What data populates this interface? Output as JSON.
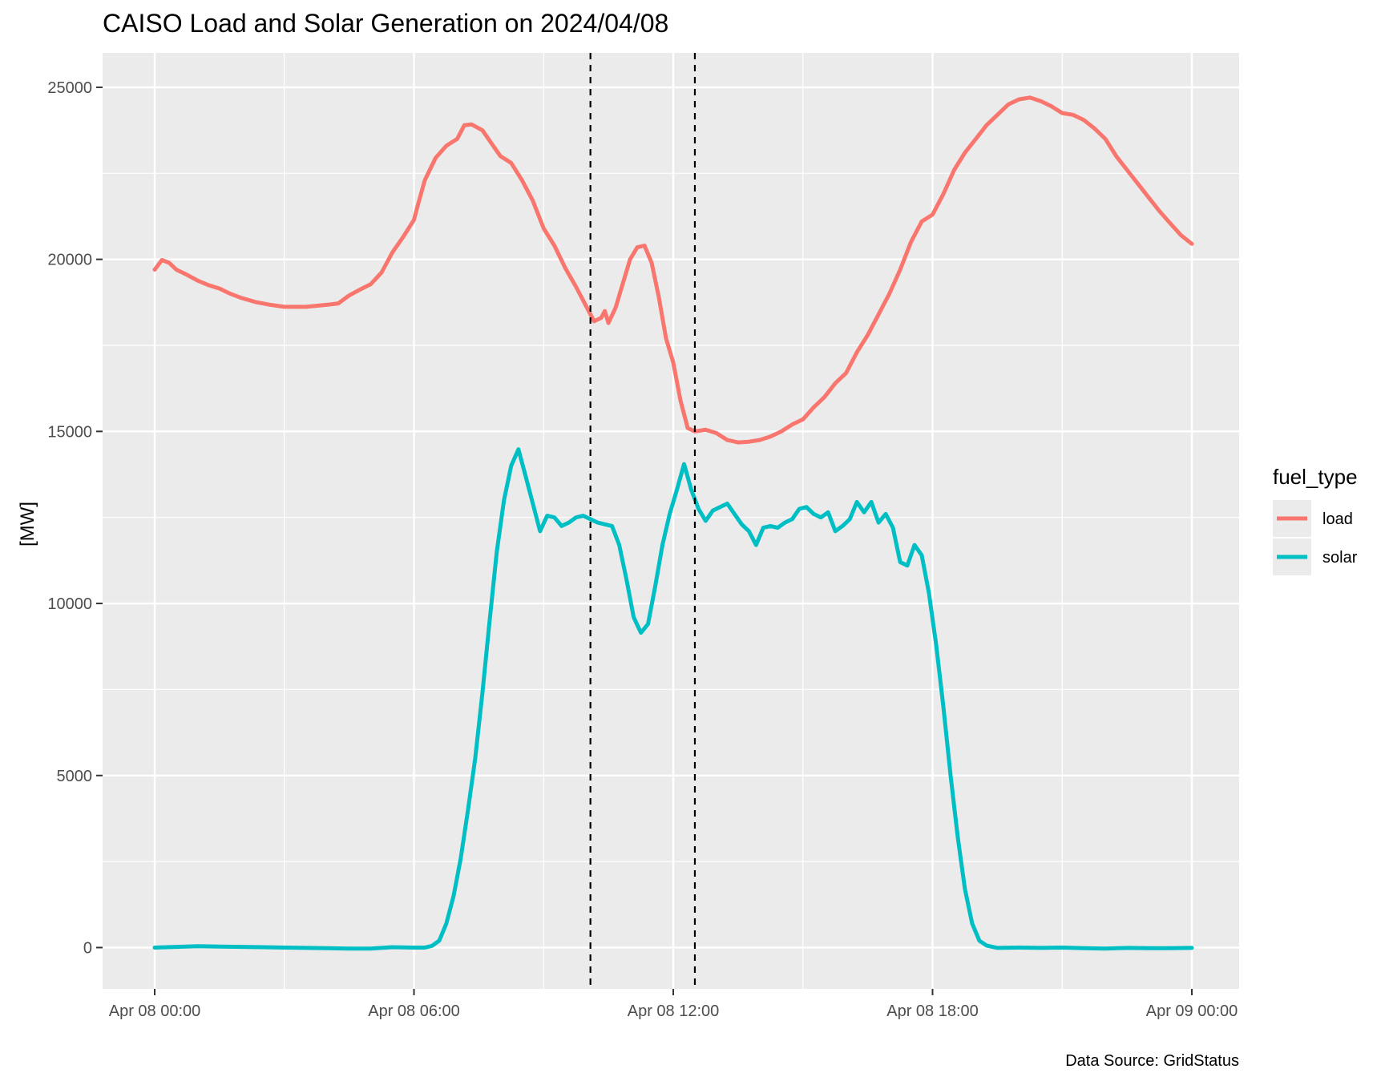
{
  "chart_data": {
    "type": "line",
    "title": "CAISO Load and Solar Generation on 2024/04/08",
    "xlabel": "",
    "ylabel": "[MW]",
    "caption": "Data Source: GridStatus",
    "x_range": [
      "2024-04-08 00:00",
      "2024-04-09 00:00"
    ],
    "ylim": [
      -1200,
      26000
    ],
    "y_ticks": [
      0,
      5000,
      10000,
      15000,
      20000,
      25000
    ],
    "y_tick_labels": [
      "0",
      "5000",
      "10000",
      "15000",
      "20000",
      "25000"
    ],
    "x_ticks": [
      "2024-04-08 00:00",
      "2024-04-08 06:00",
      "2024-04-08 12:00",
      "2024-04-08 18:00",
      "2024-04-09 00:00"
    ],
    "x_tick_labels": [
      "Apr 08 00:00",
      "Apr 08 06:00",
      "Apr 08 12:00",
      "Apr 08 18:00",
      "Apr 09 00:00"
    ],
    "grid": true,
    "legend": {
      "title": "fuel_type",
      "position": "right"
    },
    "vlines": [
      "2024-04-08 10:05",
      "2024-04-08 12:30"
    ],
    "series": [
      {
        "name": "load",
        "color": "#F8766D",
        "points": [
          [
            "2024-04-08 00:00",
            19700
          ],
          [
            "2024-04-08 00:10",
            19980
          ],
          [
            "2024-04-08 00:20",
            19900
          ],
          [
            "2024-04-08 00:30",
            19700
          ],
          [
            "2024-04-08 00:45",
            19550
          ],
          [
            "2024-04-08 01:00",
            19380
          ],
          [
            "2024-04-08 01:15",
            19250
          ],
          [
            "2024-04-08 01:30",
            19150
          ],
          [
            "2024-04-08 01:45",
            19000
          ],
          [
            "2024-04-08 02:00",
            18880
          ],
          [
            "2024-04-08 02:20",
            18760
          ],
          [
            "2024-04-08 02:40",
            18680
          ],
          [
            "2024-04-08 03:00",
            18620
          ],
          [
            "2024-04-08 03:30",
            18620
          ],
          [
            "2024-04-08 04:00",
            18680
          ],
          [
            "2024-04-08 04:15",
            18720
          ],
          [
            "2024-04-08 04:30",
            18950
          ],
          [
            "2024-04-08 04:45",
            19120
          ],
          [
            "2024-04-08 05:00",
            19280
          ],
          [
            "2024-04-08 05:15",
            19620
          ],
          [
            "2024-04-08 05:30",
            20200
          ],
          [
            "2024-04-08 05:45",
            20650
          ],
          [
            "2024-04-08 06:00",
            21150
          ],
          [
            "2024-04-08 06:05",
            21550
          ],
          [
            "2024-04-08 06:15",
            22300
          ],
          [
            "2024-04-08 06:30",
            22950
          ],
          [
            "2024-04-08 06:45",
            23300
          ],
          [
            "2024-04-08 07:00",
            23500
          ],
          [
            "2024-04-08 07:10",
            23900
          ],
          [
            "2024-04-08 07:20",
            23920
          ],
          [
            "2024-04-08 07:35",
            23750
          ],
          [
            "2024-04-08 07:50",
            23300
          ],
          [
            "2024-04-08 08:00",
            23000
          ],
          [
            "2024-04-08 08:15",
            22800
          ],
          [
            "2024-04-08 08:30",
            22300
          ],
          [
            "2024-04-08 08:45",
            21700
          ],
          [
            "2024-04-08 09:00",
            20900
          ],
          [
            "2024-04-08 09:15",
            20400
          ],
          [
            "2024-04-08 09:30",
            19750
          ],
          [
            "2024-04-08 09:45",
            19200
          ],
          [
            "2024-04-08 10:00",
            18600
          ],
          [
            "2024-04-08 10:10",
            18200
          ],
          [
            "2024-04-08 10:20",
            18300
          ],
          [
            "2024-04-08 10:25",
            18500
          ],
          [
            "2024-04-08 10:30",
            18150
          ],
          [
            "2024-04-08 10:40",
            18600
          ],
          [
            "2024-04-08 10:50",
            19300
          ],
          [
            "2024-04-08 11:00",
            20000
          ],
          [
            "2024-04-08 11:10",
            20350
          ],
          [
            "2024-04-08 11:20",
            20400
          ],
          [
            "2024-04-08 11:30",
            19900
          ],
          [
            "2024-04-08 11:40",
            18900
          ],
          [
            "2024-04-08 11:50",
            17700
          ],
          [
            "2024-04-08 12:00",
            17000
          ],
          [
            "2024-04-08 12:10",
            15900
          ],
          [
            "2024-04-08 12:20",
            15100
          ],
          [
            "2024-04-08 12:30",
            15000
          ],
          [
            "2024-04-08 12:45",
            15050
          ],
          [
            "2024-04-08 13:00",
            14950
          ],
          [
            "2024-04-08 13:15",
            14750
          ],
          [
            "2024-04-08 13:30",
            14680
          ],
          [
            "2024-04-08 13:45",
            14700
          ],
          [
            "2024-04-08 14:00",
            14750
          ],
          [
            "2024-04-08 14:15",
            14850
          ],
          [
            "2024-04-08 14:30",
            15000
          ],
          [
            "2024-04-08 14:45",
            15200
          ],
          [
            "2024-04-08 15:00",
            15350
          ],
          [
            "2024-04-08 15:15",
            15700
          ],
          [
            "2024-04-08 15:30",
            16000
          ],
          [
            "2024-04-08 15:45",
            16400
          ],
          [
            "2024-04-08 16:00",
            16700
          ],
          [
            "2024-04-08 16:15",
            17300
          ],
          [
            "2024-04-08 16:30",
            17800
          ],
          [
            "2024-04-08 16:45",
            18400
          ],
          [
            "2024-04-08 17:00",
            19000
          ],
          [
            "2024-04-08 17:15",
            19700
          ],
          [
            "2024-04-08 17:30",
            20500
          ],
          [
            "2024-04-08 17:45",
            21100
          ],
          [
            "2024-04-08 18:00",
            21300
          ],
          [
            "2024-04-08 18:15",
            21900
          ],
          [
            "2024-04-08 18:30",
            22600
          ],
          [
            "2024-04-08 18:45",
            23100
          ],
          [
            "2024-04-08 19:00",
            23500
          ],
          [
            "2024-04-08 19:15",
            23900
          ],
          [
            "2024-04-08 19:30",
            24200
          ],
          [
            "2024-04-08 19:45",
            24500
          ],
          [
            "2024-04-08 20:00",
            24650
          ],
          [
            "2024-04-08 20:15",
            24700
          ],
          [
            "2024-04-08 20:30",
            24600
          ],
          [
            "2024-04-08 20:45",
            24450
          ],
          [
            "2024-04-08 21:00",
            24250
          ],
          [
            "2024-04-08 21:15",
            24200
          ],
          [
            "2024-04-08 21:30",
            24050
          ],
          [
            "2024-04-08 21:45",
            23800
          ],
          [
            "2024-04-08 22:00",
            23500
          ],
          [
            "2024-04-08 22:15",
            23000
          ],
          [
            "2024-04-08 22:30",
            22600
          ],
          [
            "2024-04-08 22:45",
            22200
          ],
          [
            "2024-04-08 23:00",
            21800
          ],
          [
            "2024-04-08 23:15",
            21400
          ],
          [
            "2024-04-08 23:30",
            21050
          ],
          [
            "2024-04-08 23:45",
            20700
          ],
          [
            "2024-04-09 00:00",
            20450
          ]
        ]
      },
      {
        "name": "solar",
        "color": "#00BFC4",
        "points": [
          [
            "2024-04-08 00:00",
            0
          ],
          [
            "2024-04-08 00:30",
            20
          ],
          [
            "2024-04-08 01:00",
            40
          ],
          [
            "2024-04-08 01:30",
            30
          ],
          [
            "2024-04-08 02:00",
            20
          ],
          [
            "2024-04-08 02:30",
            10
          ],
          [
            "2024-04-08 03:00",
            0
          ],
          [
            "2024-04-08 03:30",
            -10
          ],
          [
            "2024-04-08 04:00",
            -20
          ],
          [
            "2024-04-08 04:30",
            -30
          ],
          [
            "2024-04-08 05:00",
            -30
          ],
          [
            "2024-04-08 05:30",
            10
          ],
          [
            "2024-04-08 06:00",
            0
          ],
          [
            "2024-04-08 06:15",
            0
          ],
          [
            "2024-04-08 06:25",
            50
          ],
          [
            "2024-04-08 06:35",
            200
          ],
          [
            "2024-04-08 06:45",
            700
          ],
          [
            "2024-04-08 06:55",
            1500
          ],
          [
            "2024-04-08 07:05",
            2600
          ],
          [
            "2024-04-08 07:15",
            4000
          ],
          [
            "2024-04-08 07:25",
            5500
          ],
          [
            "2024-04-08 07:35",
            7400
          ],
          [
            "2024-04-08 07:45",
            9500
          ],
          [
            "2024-04-08 07:55",
            11500
          ],
          [
            "2024-04-08 08:05",
            13000
          ],
          [
            "2024-04-08 08:15",
            14000
          ],
          [
            "2024-04-08 08:25",
            14480
          ],
          [
            "2024-04-08 08:35",
            13700
          ],
          [
            "2024-04-08 08:45",
            12900
          ],
          [
            "2024-04-08 08:55",
            12100
          ],
          [
            "2024-04-08 09:05",
            12550
          ],
          [
            "2024-04-08 09:15",
            12500
          ],
          [
            "2024-04-08 09:25",
            12250
          ],
          [
            "2024-04-08 09:35",
            12350
          ],
          [
            "2024-04-08 09:45",
            12500
          ],
          [
            "2024-04-08 09:55",
            12550
          ],
          [
            "2024-04-08 10:05",
            12450
          ],
          [
            "2024-04-08 10:15",
            12350
          ],
          [
            "2024-04-08 10:25",
            12300
          ],
          [
            "2024-04-08 10:35",
            12250
          ],
          [
            "2024-04-08 10:45",
            11700
          ],
          [
            "2024-04-08 10:55",
            10700
          ],
          [
            "2024-04-08 11:05",
            9600
          ],
          [
            "2024-04-08 11:15",
            9150
          ],
          [
            "2024-04-08 11:25",
            9400
          ],
          [
            "2024-04-08 11:35",
            10500
          ],
          [
            "2024-04-08 11:45",
            11700
          ],
          [
            "2024-04-08 11:55",
            12600
          ],
          [
            "2024-04-08 12:05",
            13300
          ],
          [
            "2024-04-08 12:15",
            14050
          ],
          [
            "2024-04-08 12:25",
            13300
          ],
          [
            "2024-04-08 12:35",
            12750
          ],
          [
            "2024-04-08 12:45",
            12400
          ],
          [
            "2024-04-08 12:55",
            12700
          ],
          [
            "2024-04-08 13:05",
            12800
          ],
          [
            "2024-04-08 13:15",
            12900
          ],
          [
            "2024-04-08 13:25",
            12600
          ],
          [
            "2024-04-08 13:35",
            12300
          ],
          [
            "2024-04-08 13:45",
            12100
          ],
          [
            "2024-04-08 13:55",
            11700
          ],
          [
            "2024-04-08 14:05",
            12200
          ],
          [
            "2024-04-08 14:15",
            12250
          ],
          [
            "2024-04-08 14:25",
            12200
          ],
          [
            "2024-04-08 14:35",
            12350
          ],
          [
            "2024-04-08 14:45",
            12450
          ],
          [
            "2024-04-08 14:55",
            12750
          ],
          [
            "2024-04-08 15:05",
            12800
          ],
          [
            "2024-04-08 15:15",
            12600
          ],
          [
            "2024-04-08 15:25",
            12500
          ],
          [
            "2024-04-08 15:35",
            12650
          ],
          [
            "2024-04-08 15:45",
            12100
          ],
          [
            "2024-04-08 15:55",
            12250
          ],
          [
            "2024-04-08 16:05",
            12450
          ],
          [
            "2024-04-08 16:15",
            12950
          ],
          [
            "2024-04-08 16:25",
            12650
          ],
          [
            "2024-04-08 16:35",
            12950
          ],
          [
            "2024-04-08 16:45",
            12350
          ],
          [
            "2024-04-08 16:55",
            12600
          ],
          [
            "2024-04-08 17:05",
            12200
          ],
          [
            "2024-04-08 17:15",
            11200
          ],
          [
            "2024-04-08 17:25",
            11100
          ],
          [
            "2024-04-08 17:35",
            11700
          ],
          [
            "2024-04-08 17:45",
            11400
          ],
          [
            "2024-04-08 17:55",
            10300
          ],
          [
            "2024-04-08 18:05",
            8800
          ],
          [
            "2024-04-08 18:15",
            7000
          ],
          [
            "2024-04-08 18:25",
            5000
          ],
          [
            "2024-04-08 18:35",
            3200
          ],
          [
            "2024-04-08 18:45",
            1700
          ],
          [
            "2024-04-08 18:55",
            700
          ],
          [
            "2024-04-08 19:05",
            200
          ],
          [
            "2024-04-08 19:15",
            60
          ],
          [
            "2024-04-08 19:30",
            -10
          ],
          [
            "2024-04-08 20:00",
            0
          ],
          [
            "2024-04-08 20:30",
            -10
          ],
          [
            "2024-04-08 21:00",
            0
          ],
          [
            "2024-04-08 21:30",
            -20
          ],
          [
            "2024-04-08 22:00",
            -30
          ],
          [
            "2024-04-08 22:30",
            -10
          ],
          [
            "2024-04-08 23:00",
            -20
          ],
          [
            "2024-04-08 23:30",
            -20
          ],
          [
            "2024-04-09 00:00",
            -10
          ]
        ]
      }
    ]
  }
}
